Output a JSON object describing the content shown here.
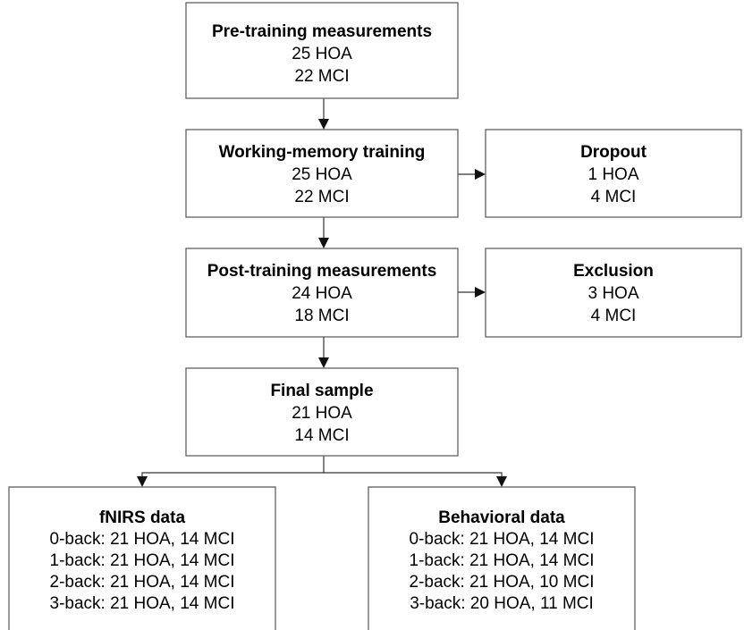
{
  "nodes": [
    {
      "title": "Pre-training measurements",
      "lines": [
        "25 HOA",
        "22 MCI"
      ]
    },
    {
      "title": "Working-memory training",
      "lines": [
        "25 HOA",
        "22 MCI"
      ]
    },
    {
      "title": "Dropout",
      "lines": [
        "1 HOA",
        "4 MCI"
      ]
    },
    {
      "title": "Post-training measurements",
      "lines": [
        "24 HOA",
        "18 MCI"
      ]
    },
    {
      "title": "Exclusion",
      "lines": [
        "3 HOA",
        "4 MCI"
      ]
    },
    {
      "title": "Final sample",
      "lines": [
        "21 HOA",
        "14 MCI"
      ]
    },
    {
      "title": "fNIRS data",
      "lines": [
        "0-back: 21 HOA, 14 MCI",
        "1-back: 21 HOA, 14 MCI",
        "2-back: 21 HOA, 14 MCI",
        "3-back: 21 HOA, 14 MCI"
      ]
    },
    {
      "title": "Behavioral data",
      "lines": [
        "0-back: 21 HOA, 14 MCI",
        "1-back: 21 HOA, 14 MCI",
        "2-back: 21 HOA, 10 MCI",
        "3-back: 20 HOA, 11 MCI"
      ]
    }
  ]
}
